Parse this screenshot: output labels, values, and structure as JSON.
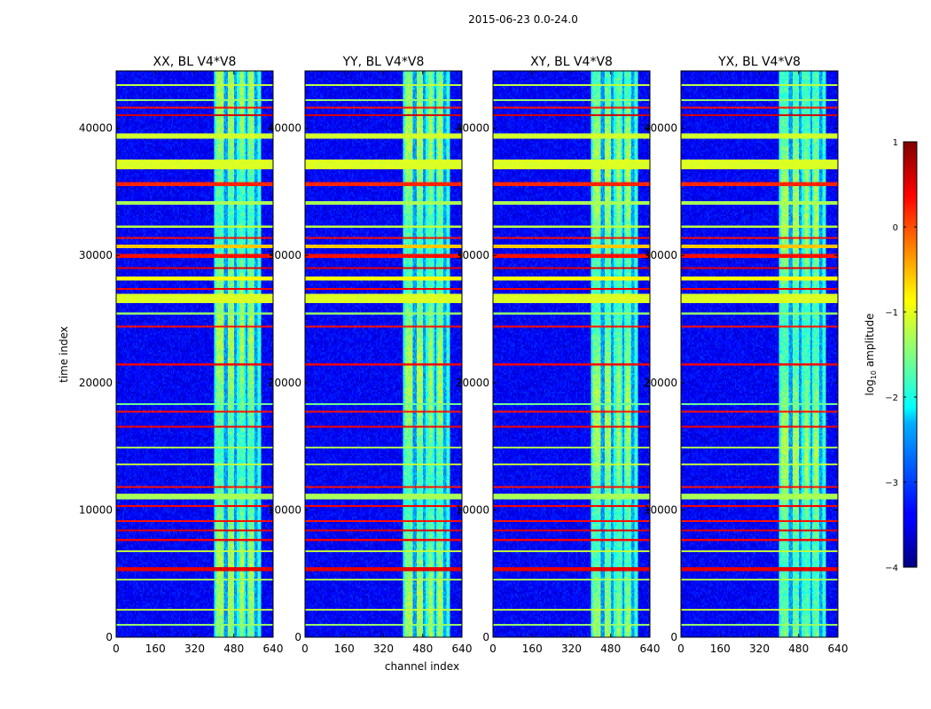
{
  "chart_data": {
    "type": "heatmap",
    "suptitle": "2015-06-23 0.0-24.0",
    "xlabel": "channel index",
    "ylabel": "time index",
    "xlim": [
      0,
      640
    ],
    "ylim": [
      0,
      44500
    ],
    "xticks": [
      0,
      160,
      320,
      480,
      640
    ],
    "yticks": [
      0,
      10000,
      20000,
      30000,
      40000
    ],
    "panels": [
      {
        "title": "XX, BL V4*V8"
      },
      {
        "title": "YY, BL V4*V8"
      },
      {
        "title": "XY, BL V4*V8"
      },
      {
        "title": "YX, BL V4*V8"
      }
    ],
    "colorbar": {
      "label_prefix": "log",
      "label_sub": "10",
      "label_suffix": " amplitude",
      "range": [
        -4,
        1
      ],
      "ticks": [
        1,
        0,
        -1,
        -2,
        -3,
        -4
      ],
      "tick_labels": [
        "1",
        "0",
        "−1",
        "−2",
        "−3",
        "−4"
      ],
      "colormap": "jet"
    },
    "background_level": -3.4,
    "signal_band": {
      "channels": [
        400,
        590
      ],
      "level": -1.9,
      "hot_channels": [
        [
          410,
          440
        ],
        [
          455,
          480
        ],
        [
          505,
          520
        ],
        [
          540,
          560
        ]
      ],
      "gaps": [
        [
          440,
          455
        ],
        [
          480,
          490
        ],
        [
          528,
          535
        ],
        [
          565,
          575
        ]
      ]
    },
    "flagged_rows": [
      {
        "t": [
          43300,
          43500
        ],
        "level": -1.2
      },
      {
        "t": [
          42100,
          42250
        ],
        "level": -1.4
      },
      {
        "t": [
          41500,
          41700
        ],
        "level": 0.3
      },
      {
        "t": [
          40900,
          41100
        ],
        "level": 0.6
      },
      {
        "t": [
          39200,
          39600
        ],
        "level": -1.1
      },
      {
        "t": [
          36800,
          37600
        ],
        "level": -1.05
      },
      {
        "t": [
          35500,
          35700
        ],
        "level": 0.2
      },
      {
        "t": [
          34000,
          34200
        ],
        "level": -1.3
      },
      {
        "t": [
          32200,
          32400
        ],
        "level": -1.2
      },
      {
        "t": [
          31300,
          31500
        ],
        "level": 0.3
      },
      {
        "t": [
          30500,
          30900
        ],
        "level": -0.6
      },
      {
        "t": [
          29800,
          30100
        ],
        "level": 0.3
      },
      {
        "t": [
          28900,
          29100
        ],
        "level": 0.5
      },
      {
        "t": [
          28000,
          28400
        ],
        "level": -0.9
      },
      {
        "t": [
          27300,
          27500
        ],
        "level": 0.4
      },
      {
        "t": [
          26200,
          27000
        ],
        "level": -1.05
      },
      {
        "t": [
          25300,
          25500
        ],
        "level": -1.4
      },
      {
        "t": [
          24300,
          24500
        ],
        "level": 0.3
      },
      {
        "t": [
          21400,
          21500
        ],
        "level": 0.4
      },
      {
        "t": [
          18200,
          18400
        ],
        "level": -1.6
      },
      {
        "t": [
          17600,
          17750
        ],
        "level": 0.3
      },
      {
        "t": [
          16400,
          16550
        ],
        "level": 0.4
      },
      {
        "t": [
          14900,
          15050
        ],
        "level": -1.3
      },
      {
        "t": [
          13500,
          13650
        ],
        "level": -1.2
      },
      {
        "t": [
          11700,
          11900
        ],
        "level": 0.3
      },
      {
        "t": [
          10900,
          11300
        ],
        "level": -1.3
      },
      {
        "t": [
          10200,
          10400
        ],
        "level": 0.4
      },
      {
        "t": [
          9000,
          9200
        ],
        "level": 0.3
      },
      {
        "t": [
          8300,
          8500
        ],
        "level": 0.5
      },
      {
        "t": [
          7500,
          7700
        ],
        "level": 0.4
      },
      {
        "t": [
          6700,
          6850
        ],
        "level": -1.2
      },
      {
        "t": [
          5200,
          5500
        ],
        "level": 0.5
      },
      {
        "t": [
          4500,
          4650
        ],
        "level": -1.3
      },
      {
        "t": [
          2100,
          2250
        ],
        "level": -1.2
      },
      {
        "t": [
          900,
          1000
        ],
        "level": -1.4
      }
    ]
  }
}
